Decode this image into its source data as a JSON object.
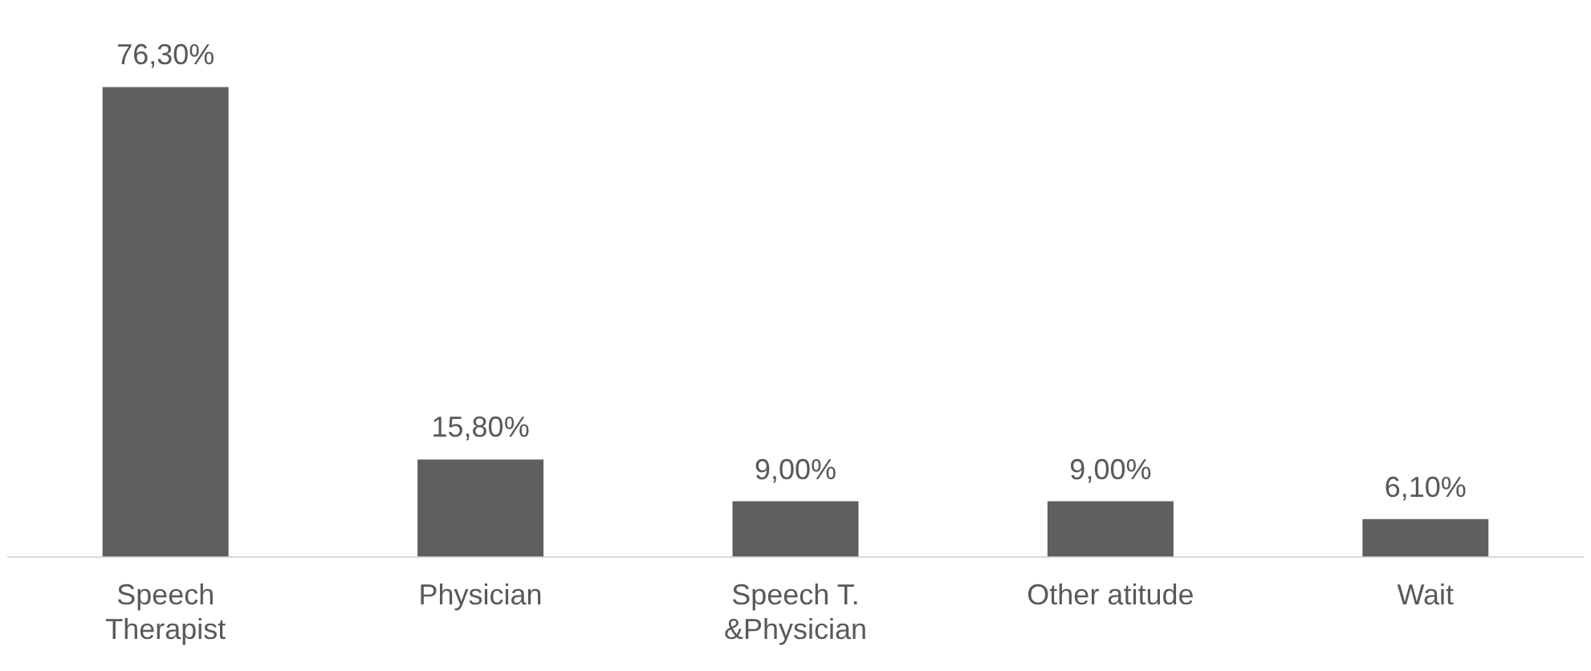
{
  "chart_data": {
    "type": "bar",
    "categories": [
      "Speech Therapist",
      "Physician",
      "Speech T. &Physician",
      "Other atitude",
      "Wait"
    ],
    "values": [
      76.3,
      15.8,
      9.0,
      9.0,
      6.1
    ],
    "value_labels": [
      "76,30%",
      "15,80%",
      "9,00%",
      "9,00%",
      "6,10%"
    ],
    "color": "#5f5f61",
    "grid": false,
    "legend": false
  }
}
